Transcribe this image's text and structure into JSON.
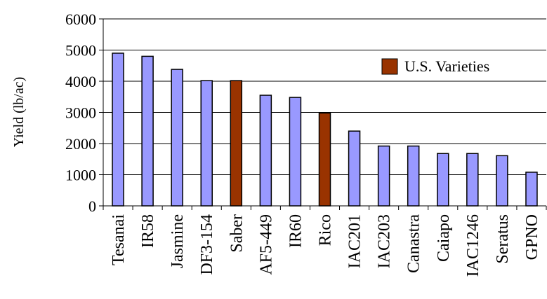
{
  "chart_data": {
    "type": "bar",
    "title": "",
    "xlabel": "",
    "ylabel": "Yield (lb/ac)",
    "ylim": [
      0,
      6000
    ],
    "yticks": [
      0,
      1000,
      2000,
      3000,
      4000,
      5000,
      6000
    ],
    "grid": true,
    "legend_position": "top-right",
    "categories": [
      "Tesanai",
      "IR58",
      "Jasmine",
      "DF3-154",
      "Saber",
      "AF5-449",
      "IR60",
      "Rico",
      "IAC201",
      "IAC203",
      "Canastra",
      "Caiapo",
      "IAC1246",
      "Seratus",
      "GPNO"
    ],
    "values": [
      4900,
      4800,
      4380,
      4020,
      4020,
      3550,
      3480,
      2980,
      2400,
      1920,
      1920,
      1680,
      1680,
      1610,
      1080
    ],
    "us_varieties": [
      "Saber",
      "Rico"
    ],
    "legend": [
      {
        "label": "U.S. Varieties",
        "color": "#993300"
      }
    ],
    "colors": {
      "default_bar": "#9999ff",
      "us_bar": "#993300",
      "bar_stroke": "#000000",
      "grid": "#000000"
    }
  }
}
